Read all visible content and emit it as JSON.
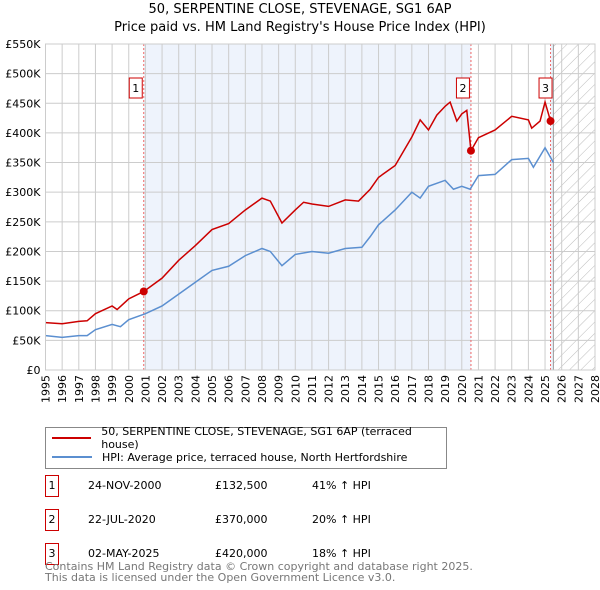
{
  "chart_data": {
    "type": "line",
    "title": "50, SERPENTINE CLOSE, STEVENAGE, SG1 6AP",
    "subtitle": "Price paid vs. HM Land Registry's House Price Index (HPI)",
    "xlim": [
      1995,
      2028
    ],
    "ylim": [
      0,
      550000
    ],
    "yticks": [
      {
        "v": 0,
        "label": "£0"
      },
      {
        "v": 50000,
        "label": "£50K"
      },
      {
        "v": 100000,
        "label": "£100K"
      },
      {
        "v": 150000,
        "label": "£150K"
      },
      {
        "v": 200000,
        "label": "£200K"
      },
      {
        "v": 250000,
        "label": "£250K"
      },
      {
        "v": 300000,
        "label": "£300K"
      },
      {
        "v": 350000,
        "label": "£350K"
      },
      {
        "v": 400000,
        "label": "£400K"
      },
      {
        "v": 450000,
        "label": "£450K"
      },
      {
        "v": 500000,
        "label": "£500K"
      },
      {
        "v": 550000,
        "label": "£550K"
      }
    ],
    "xticks": [
      "1995",
      "1996",
      "1997",
      "1998",
      "1999",
      "2000",
      "2001",
      "2002",
      "2003",
      "2004",
      "2005",
      "2006",
      "2007",
      "2008",
      "2009",
      "2010",
      "2011",
      "2012",
      "2013",
      "2014",
      "2015",
      "2016",
      "2017",
      "2018",
      "2019",
      "2020",
      "2021",
      "2022",
      "2023",
      "2024",
      "2025",
      "2026",
      "2027",
      "2028"
    ],
    "grid": true,
    "forecast_from": 2025.5,
    "series": [
      {
        "name": "50, SERPENTINE CLOSE, STEVENAGE, SG1 6AP (terraced house)",
        "color": "#cc0000",
        "x": [
          1995,
          1996,
          1997,
          1997.5,
          1998,
          1999,
          1999.3,
          2000,
          2000.9,
          2002,
          2003,
          2004,
          2005,
          2006,
          2007,
          2008,
          2008.5,
          2009.2,
          2010,
          2010.5,
          2011,
          2012,
          2013,
          2013.8,
          2014.5,
          2015,
          2016,
          2017,
          2017.5,
          2018,
          2018.5,
          2019,
          2019.3,
          2019.7,
          2020,
          2020.3,
          2020.55,
          2021,
          2022,
          2023,
          2024,
          2024.2,
          2024.7,
          2025,
          2025.33
        ],
        "y": [
          80000,
          78000,
          82000,
          83000,
          95000,
          108000,
          102000,
          120000,
          132500,
          155000,
          185000,
          210000,
          237000,
          247000,
          270000,
          290000,
          285000,
          248000,
          270000,
          283000,
          280000,
          276000,
          287000,
          285000,
          305000,
          325000,
          345000,
          393000,
          422000,
          405000,
          430000,
          445000,
          452000,
          420000,
          432000,
          438000,
          370000,
          392000,
          405000,
          428000,
          422000,
          408000,
          420000,
          452000,
          420000
        ]
      },
      {
        "name": "HPI: Average price, terraced house, North Hertfordshire",
        "color": "#5b8fd0",
        "x": [
          1995,
          1996,
          1997,
          1997.5,
          1998,
          1999,
          1999.5,
          2000,
          2001,
          2002,
          2003,
          2004,
          2005,
          2006,
          2007,
          2008,
          2008.5,
          2009.2,
          2010,
          2011,
          2012,
          2013,
          2014,
          2014.5,
          2015,
          2016,
          2017,
          2017.5,
          2018,
          2019,
          2019.5,
          2020,
          2020.5,
          2021,
          2022,
          2023,
          2024,
          2024.3,
          2025,
          2025.5
        ],
        "y": [
          58000,
          55000,
          58000,
          58000,
          68000,
          77000,
          73000,
          85000,
          95000,
          108000,
          128000,
          148000,
          168000,
          175000,
          193000,
          205000,
          200000,
          176000,
          195000,
          200000,
          197000,
          205000,
          207000,
          225000,
          245000,
          270000,
          300000,
          290000,
          310000,
          320000,
          305000,
          310000,
          305000,
          328000,
          330000,
          355000,
          357000,
          342000,
          375000,
          350000
        ]
      }
    ],
    "sales": [
      {
        "n": "1",
        "date": "24-NOV-2000",
        "x": 2000.9,
        "price": "£132,500",
        "value": 132500,
        "hpi": "41% ↑ HPI"
      },
      {
        "n": "2",
        "date": "22-JUL-2020",
        "x": 2020.55,
        "price": "£370,000",
        "value": 370000,
        "hpi": "20% ↑ HPI"
      },
      {
        "n": "3",
        "date": "02-MAY-2025",
        "x": 2025.33,
        "price": "£420,000",
        "value": 420000,
        "hpi": "18% ↑ HPI"
      }
    ]
  },
  "legend": {
    "property": "50, SERPENTINE CLOSE, STEVENAGE, SG1 6AP (terraced house)",
    "hpi": "HPI: Average price, terraced house, North Hertfordshire"
  },
  "footer": {
    "line1": "Contains HM Land Registry data © Crown copyright and database right 2025.",
    "line2": "This data is licensed under the Open Government Licence v3.0."
  }
}
